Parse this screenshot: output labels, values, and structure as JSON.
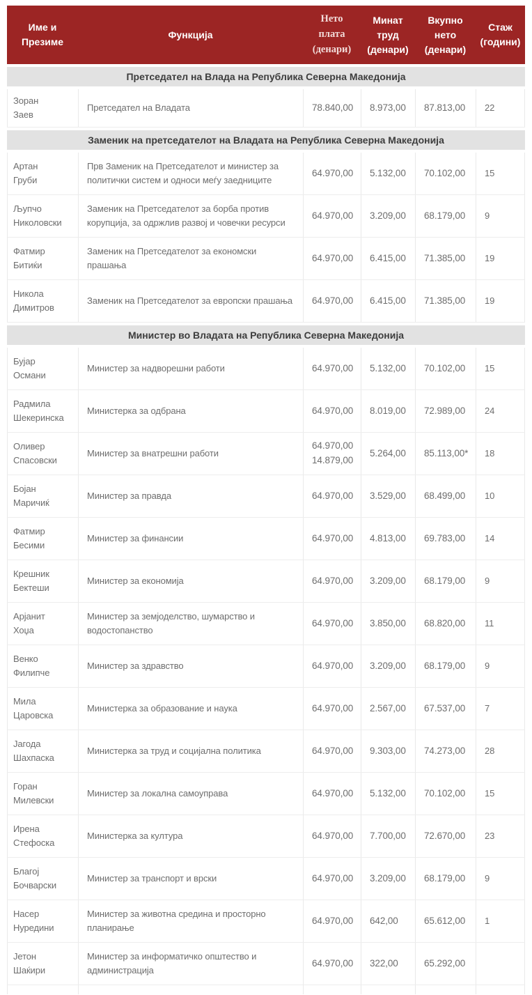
{
  "colors": {
    "header_bg": "#9c2524",
    "header_text": "#ffffff",
    "header_serif_text": "#f2dcda",
    "section_bg": "#e2e2e2",
    "section_text": "#3d3d3d",
    "cell_text": "#6e6e6e",
    "border": "#e9e9e9"
  },
  "table": {
    "columns": [
      {
        "id": "name",
        "label": "Име и\nПрезиме"
      },
      {
        "id": "function",
        "label": "Функција"
      },
      {
        "id": "net",
        "label": "Нето\nплата\n(денари)"
      },
      {
        "id": "past",
        "label": "Минат\nтруд\n(денари)"
      },
      {
        "id": "total",
        "label": "Вкупно\nнето\n(денари)"
      },
      {
        "id": "years",
        "label": "Стаж\n(години)"
      }
    ],
    "sections": [
      {
        "title": "Претседател на Влада на Република Северна Македонија",
        "rows": [
          {
            "name": "Зоран Заев",
            "function": "Претседател на Владата",
            "net": "78.840,00",
            "past": "8.973,00",
            "total": "87.813,00",
            "years": "22"
          }
        ]
      },
      {
        "title": "Заменик на претседателот на Владата на Република Северна Македонија",
        "rows": [
          {
            "name": "Артан Груби",
            "function": "Прв Заменик на Претседателот и министер за политички систем и односи меѓу заедниците",
            "net": "64.970,00",
            "past": "5.132,00",
            "total": "70.102,00",
            "years": "15"
          },
          {
            "name": "Љупчо Николовски",
            "function": "Заменик на Претседателот за борба против корупција, за одржлив развој и човечки ресурси",
            "net": "64.970,00",
            "past": "3.209,00",
            "total": "68.179,00",
            "years": "9"
          },
          {
            "name": "Фатмир Битиќи",
            "function": "Заменик на Претседателот за економски прашања",
            "net": "64.970,00",
            "past": "6.415,00",
            "total": "71.385,00",
            "years": "19"
          },
          {
            "name": "Никола Димитров",
            "function": "Заменик на Претседателот за европски прашања",
            "net": "64.970,00",
            "past": "6.415,00",
            "total": "71.385,00",
            "years": "19"
          }
        ]
      },
      {
        "title": "Министер во Владата на Република Северна Македонија",
        "rows": [
          {
            "name": "Бујар Османи",
            "function": "Министер за надворешни работи",
            "net": "64.970,00",
            "past": "5.132,00",
            "total": "70.102,00",
            "years": "15"
          },
          {
            "name": "Радмила Шекеринска",
            "function": "Министерка за одбрана",
            "net": "64.970,00",
            "past": "8.019,00",
            "total": "72.989,00",
            "years": "24"
          },
          {
            "name": "Оливер Спасовски",
            "function": "Министер за внатрешни работи",
            "net": "64.970,00\n14.879,00",
            "past": "5.264,00",
            "total": "85.113,00*",
            "years": "18"
          },
          {
            "name": "Бојан Маричиќ",
            "function": "Министер за правда",
            "net": "64.970,00",
            "past": "3.529,00",
            "total": "68.499,00",
            "years": "10"
          },
          {
            "name": "Фатмир Бесими",
            "function": "Министер за финансии",
            "net": "64.970,00",
            "past": "4.813,00",
            "total": "69.783,00",
            "years": "14"
          },
          {
            "name": "Крешник Бектеши",
            "function": "Министер за економија",
            "net": "64.970,00",
            "past": "3.209,00",
            "total": "68.179,00",
            "years": "9"
          },
          {
            "name": "Арјанит Хоџа",
            "function": "Министер за земјоделство, шумарство и водостопанство",
            "net": "64.970,00",
            "past": "3.850,00",
            "total": "68.820,00",
            "years": "11"
          },
          {
            "name": "Венко Филипче",
            "function": "Министер за здравство",
            "net": "64.970,00",
            "past": "3.209,00",
            "total": "68.179,00",
            "years": "9"
          },
          {
            "name": "Мила Царовска",
            "function": "Министерка за образование и наука",
            "net": "64.970,00",
            "past": "2.567,00",
            "total": "67.537,00",
            "years": "7"
          },
          {
            "name": "Јагода Шахпаска",
            "function": "Министерка за труд и социјална политика",
            "net": "64.970,00",
            "past": "9.303,00",
            "total": "74.273,00",
            "years": "28"
          },
          {
            "name": "Горан Милевски",
            "function": "Министер за локална самоуправа",
            "net": "64.970,00",
            "past": "5.132,00",
            "total": "70.102,00",
            "years": "15"
          },
          {
            "name": "Ирена Стефоска",
            "function": "Министерка за култура",
            "net": "64.970,00",
            "past": "7.700,00",
            "total": "72.670,00",
            "years": "23"
          },
          {
            "name": "Благој Бочварски",
            "function": "Министер за транспорт и врски",
            "net": "64.970,00",
            "past": "3.209,00",
            "total": "68.179,00",
            "years": "9"
          },
          {
            "name": "Насер Нуредини",
            "function": "Министер за животна средина и просторно планирање",
            "net": "64.970,00",
            "past": "642,00",
            "total": "65.612,00",
            "years": "1"
          },
          {
            "name": "Јетон Шаќири",
            "function": "Министер за информатичко општество и администрација",
            "net": "64.970,00",
            "past": "322,00",
            "total": "65.292,00",
            "years": ""
          }
        ]
      }
    ]
  }
}
